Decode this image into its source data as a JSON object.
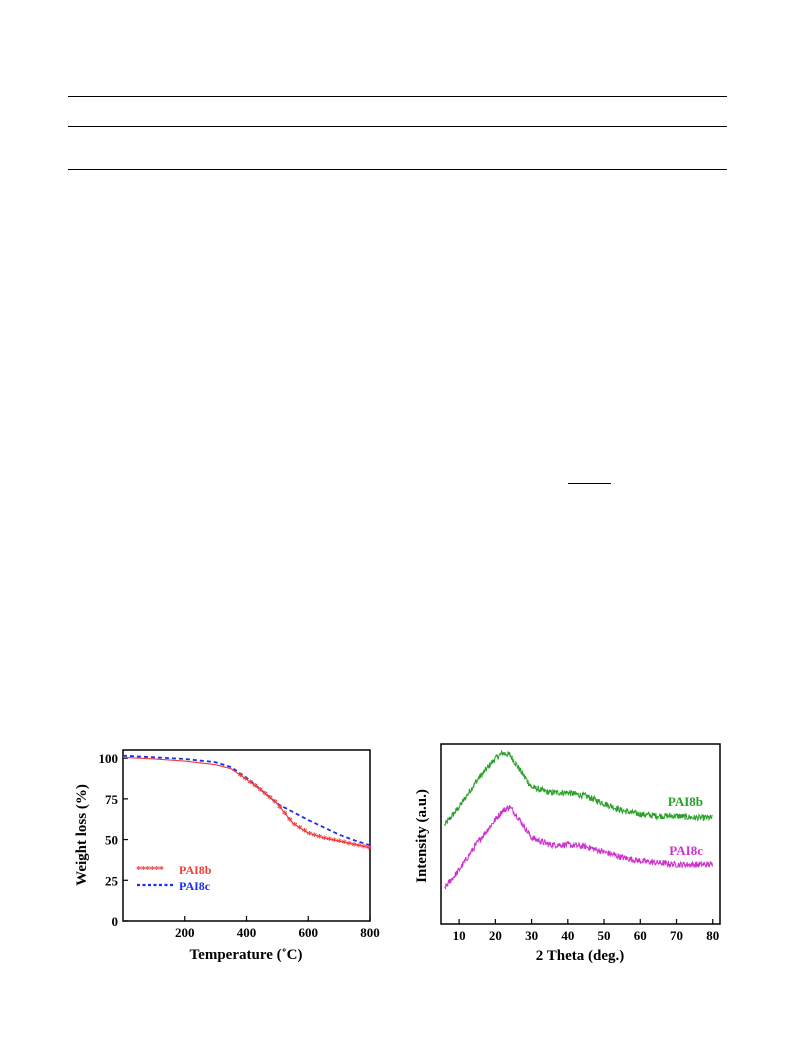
{
  "chart_data": [
    {
      "type": "line",
      "xlabel": "Temperature (˚C)",
      "ylabel": "Weight loss (%)",
      "xlim": [
        0,
        800
      ],
      "ylim": [
        0,
        105
      ],
      "x_ticks": [
        "200",
        "400",
        "600",
        "800"
      ],
      "y_ticks": [
        "0",
        "25",
        "50",
        "75",
        "100"
      ],
      "grid": false,
      "legend_position": "bottom-left",
      "series": [
        {
          "name": "PAI8b",
          "color": "#f03c3c",
          "style": "asterisk-markers",
          "x": [
            0,
            100,
            200,
            300,
            350,
            400,
            450,
            500,
            550,
            600,
            650,
            700,
            750,
            800
          ],
          "y": [
            100.5,
            99.5,
            98.2,
            96,
            93.5,
            87,
            80,
            72,
            60,
            54,
            51,
            49,
            47,
            45
          ]
        },
        {
          "name": "PAI8c",
          "color": "#1a2ef0",
          "style": "dashed",
          "x": [
            0,
            100,
            200,
            300,
            350,
            400,
            450,
            500,
            550,
            600,
            650,
            700,
            750,
            800
          ],
          "y": [
            101.5,
            100.5,
            99.5,
            97.5,
            94.5,
            88,
            80,
            72,
            67,
            62,
            57.5,
            53,
            49.5,
            46.5
          ]
        }
      ]
    },
    {
      "type": "line",
      "xlabel": "2 Theta (deg.)",
      "ylabel": "Intensity (a.u.)",
      "xlim": [
        5,
        82
      ],
      "x_ticks": [
        "10",
        "20",
        "30",
        "40",
        "50",
        "60",
        "70",
        "80"
      ],
      "y_ticks": [],
      "grid": false,
      "legend_position": "series-labels-right",
      "series": [
        {
          "name": "PAI8b",
          "color": "#2aa02a",
          "x": [
            6,
            10,
            15,
            20,
            22,
            24,
            26,
            30,
            35,
            40,
            45,
            50,
            55,
            60,
            65,
            70,
            75,
            80
          ],
          "y": [
            0.55,
            0.65,
            0.8,
            0.92,
            0.95,
            0.94,
            0.88,
            0.76,
            0.73,
            0.73,
            0.71,
            0.67,
            0.63,
            0.61,
            0.6,
            0.6,
            0.59,
            0.59
          ]
        },
        {
          "name": "PAI8c",
          "color": "#cc33cc",
          "x": [
            6,
            10,
            15,
            20,
            22,
            24,
            26,
            30,
            35,
            40,
            45,
            50,
            55,
            60,
            65,
            70,
            75,
            80
          ],
          "y": [
            0.2,
            0.3,
            0.45,
            0.58,
            0.63,
            0.65,
            0.6,
            0.48,
            0.44,
            0.44,
            0.43,
            0.4,
            0.37,
            0.35,
            0.34,
            0.33,
            0.33,
            0.33
          ]
        }
      ]
    }
  ]
}
